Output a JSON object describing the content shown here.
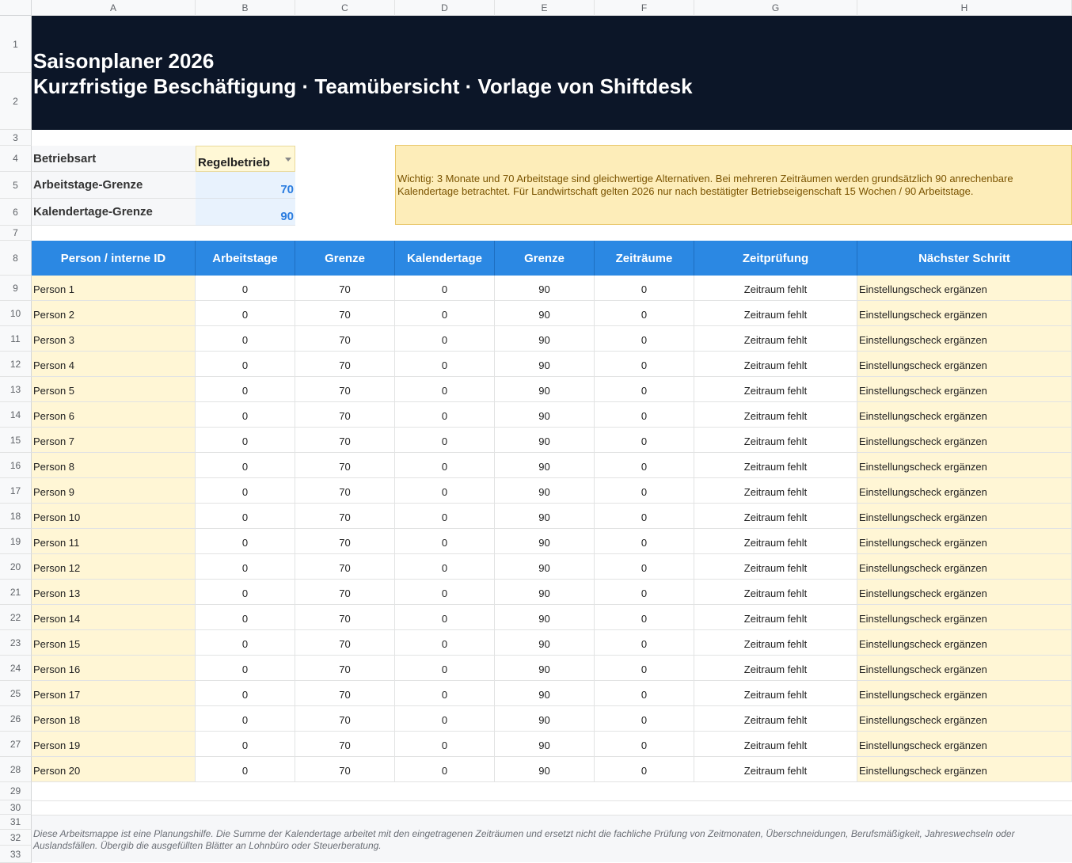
{
  "columns": [
    "A",
    "B",
    "C",
    "D",
    "E",
    "F",
    "G",
    "H"
  ],
  "rows": [
    "1",
    "2",
    "3",
    "4",
    "5",
    "6",
    "7",
    "8",
    "9",
    "10",
    "11",
    "12",
    "13",
    "14",
    "15",
    "16",
    "17",
    "18",
    "19",
    "20",
    "21",
    "22",
    "23",
    "24",
    "25",
    "26",
    "27",
    "28",
    "29",
    "30",
    "31",
    "32",
    "33"
  ],
  "banner": {
    "title": "Saisonplaner 2026",
    "subtitle": "Kurzfristige Beschäftigung · Teamübersicht · Vorlage von Shiftdesk"
  },
  "config": {
    "betriebsart_label": "Betriebsart",
    "betriebsart_value": "Regelbetrieb",
    "arbeitstage_label": "Arbeitstage-Grenze",
    "arbeitstage_value": "70",
    "kalendertage_label": "Kalendertage-Grenze",
    "kalendertage_value": "90"
  },
  "note": "Wichtig: 3 Monate und 70 Arbeitstage sind gleichwertige Alternativen. Bei mehreren Zeiträumen werden grundsätzlich 90 anrechenbare Kalendertage betrachtet. Für Landwirtschaft gelten 2026 nur nach bestätigter Betriebseigenschaft 15 Wochen / 90 Arbeitstage.",
  "table": {
    "headers": [
      "Person / interne ID",
      "Arbeitstage",
      "Grenze",
      "Kalendertage",
      "Grenze",
      "Zeiträume",
      "Zeitprüfung",
      "Nächster Schritt"
    ],
    "rows": [
      [
        "Person 1",
        "0",
        "70",
        "0",
        "90",
        "0",
        "Zeitraum fehlt",
        "Einstellungscheck ergänzen"
      ],
      [
        "Person 2",
        "0",
        "70",
        "0",
        "90",
        "0",
        "Zeitraum fehlt",
        "Einstellungscheck ergänzen"
      ],
      [
        "Person 3",
        "0",
        "70",
        "0",
        "90",
        "0",
        "Zeitraum fehlt",
        "Einstellungscheck ergänzen"
      ],
      [
        "Person 4",
        "0",
        "70",
        "0",
        "90",
        "0",
        "Zeitraum fehlt",
        "Einstellungscheck ergänzen"
      ],
      [
        "Person 5",
        "0",
        "70",
        "0",
        "90",
        "0",
        "Zeitraum fehlt",
        "Einstellungscheck ergänzen"
      ],
      [
        "Person 6",
        "0",
        "70",
        "0",
        "90",
        "0",
        "Zeitraum fehlt",
        "Einstellungscheck ergänzen"
      ],
      [
        "Person 7",
        "0",
        "70",
        "0",
        "90",
        "0",
        "Zeitraum fehlt",
        "Einstellungscheck ergänzen"
      ],
      [
        "Person 8",
        "0",
        "70",
        "0",
        "90",
        "0",
        "Zeitraum fehlt",
        "Einstellungscheck ergänzen"
      ],
      [
        "Person 9",
        "0",
        "70",
        "0",
        "90",
        "0",
        "Zeitraum fehlt",
        "Einstellungscheck ergänzen"
      ],
      [
        "Person 10",
        "0",
        "70",
        "0",
        "90",
        "0",
        "Zeitraum fehlt",
        "Einstellungscheck ergänzen"
      ],
      [
        "Person 11",
        "0",
        "70",
        "0",
        "90",
        "0",
        "Zeitraum fehlt",
        "Einstellungscheck ergänzen"
      ],
      [
        "Person 12",
        "0",
        "70",
        "0",
        "90",
        "0",
        "Zeitraum fehlt",
        "Einstellungscheck ergänzen"
      ],
      [
        "Person 13",
        "0",
        "70",
        "0",
        "90",
        "0",
        "Zeitraum fehlt",
        "Einstellungscheck ergänzen"
      ],
      [
        "Person 14",
        "0",
        "70",
        "0",
        "90",
        "0",
        "Zeitraum fehlt",
        "Einstellungscheck ergänzen"
      ],
      [
        "Person 15",
        "0",
        "70",
        "0",
        "90",
        "0",
        "Zeitraum fehlt",
        "Einstellungscheck ergänzen"
      ],
      [
        "Person 16",
        "0",
        "70",
        "0",
        "90",
        "0",
        "Zeitraum fehlt",
        "Einstellungscheck ergänzen"
      ],
      [
        "Person 17",
        "0",
        "70",
        "0",
        "90",
        "0",
        "Zeitraum fehlt",
        "Einstellungscheck ergänzen"
      ],
      [
        "Person 18",
        "0",
        "70",
        "0",
        "90",
        "0",
        "Zeitraum fehlt",
        "Einstellungscheck ergänzen"
      ],
      [
        "Person 19",
        "0",
        "70",
        "0",
        "90",
        "0",
        "Zeitraum fehlt",
        "Einstellungscheck ergänzen"
      ],
      [
        "Person 20",
        "0",
        "70",
        "0",
        "90",
        "0",
        "Zeitraum fehlt",
        "Einstellungscheck ergänzen"
      ]
    ]
  },
  "footer_note": "Diese Arbeitsmappe ist eine Planungshilfe. Die Summe der Kalendertage arbeitet mit den eingetragenen Zeiträumen und ersetzt nicht die fachliche Prüfung von Zeitmonaten, Überschneidungen, Berufsmäßigkeit, Jahreswechseln oder Auslandsfällen. Übergib die ausgefüllten Blätter an Lohnbüro oder Steuerberatung.",
  "colors": {
    "banner_bg": "#0c1628",
    "header_blue": "#2b88e3",
    "input_yellow": "#fff6d5",
    "note_bg": "#fdedb9",
    "accent_number": "#2b7de0"
  }
}
